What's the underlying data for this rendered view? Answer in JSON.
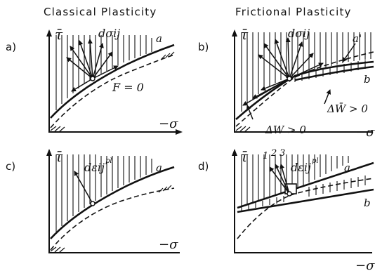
{
  "headings": {
    "left": "Classical Plasticity",
    "right": "Frictional Plasticity"
  },
  "panels": {
    "a": {
      "letter": "a)",
      "y_axis": "τ̄",
      "x_axis": "−σ",
      "increment": "dσij",
      "curve_a": "a",
      "condition": "F = 0"
    },
    "b": {
      "letter": "b)",
      "y_axis": "τ̄",
      "x_axis": "−σ",
      "increment": "dσij",
      "curve_a": "a'",
      "curve_b": "b",
      "work_neg": "ΔW > 0",
      "work_pos": "ΔW̄ > 0"
    },
    "c": {
      "letter": "c)",
      "y_axis": "τ̄",
      "x_axis": "−σ",
      "strain": "dεij",
      "strain_sup": "pl",
      "curve_a": "a"
    },
    "d": {
      "letter": "d)",
      "y_axis": "τ̄",
      "x_axis": "−σ",
      "strain": "dεij",
      "strain_sup": "pl",
      "curve_a": "a",
      "curve_b": "b",
      "directions": [
        "1",
        "2",
        "3"
      ]
    }
  },
  "colors": {
    "ink": "#111111",
    "paper": "#ffffff"
  }
}
